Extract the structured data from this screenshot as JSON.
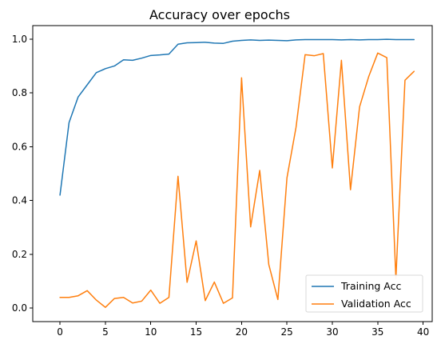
{
  "chart_data": {
    "type": "line",
    "title": "Accuracy over epochs",
    "xlabel": "",
    "ylabel": "",
    "xlim": [
      -3.0,
      41.0
    ],
    "ylim": [
      -0.05,
      1.05
    ],
    "x_ticks": [
      0,
      5,
      10,
      15,
      20,
      25,
      30,
      35,
      40
    ],
    "y_ticks": [
      0.0,
      0.2,
      0.4,
      0.6,
      0.8,
      1.0
    ],
    "x_tick_labels": [
      "0",
      "5",
      "10",
      "15",
      "20",
      "25",
      "30",
      "35",
      "40"
    ],
    "y_tick_labels": [
      "0.0",
      "0.2",
      "0.4",
      "0.6",
      "0.8",
      "1.0"
    ],
    "x": [
      0,
      1,
      2,
      3,
      4,
      5,
      6,
      7,
      8,
      9,
      10,
      11,
      12,
      13,
      14,
      15,
      16,
      17,
      18,
      19,
      20,
      21,
      22,
      23,
      24,
      25,
      26,
      27,
      28,
      29,
      30,
      31,
      32,
      33,
      34,
      35,
      36,
      37,
      38,
      39
    ],
    "series": [
      {
        "name": "Training Acc",
        "color": "#1f77b4",
        "values": [
          0.42,
          0.69,
          0.785,
          0.83,
          0.875,
          0.89,
          0.9,
          0.923,
          0.921,
          0.929,
          0.939,
          0.941,
          0.944,
          0.981,
          0.986,
          0.987,
          0.988,
          0.985,
          0.984,
          0.992,
          0.995,
          0.997,
          0.995,
          0.996,
          0.995,
          0.994,
          0.997,
          0.998,
          0.998,
          0.998,
          0.998,
          0.997,
          0.998,
          0.997,
          0.998,
          0.998,
          0.999,
          0.998,
          0.998,
          0.998
        ]
      },
      {
        "name": "Validation Acc",
        "color": "#ff7f0e",
        "values": [
          0.04,
          0.04,
          0.046,
          0.065,
          0.03,
          0.003,
          0.036,
          0.04,
          0.019,
          0.026,
          0.067,
          0.018,
          0.04,
          0.49,
          0.096,
          0.25,
          0.028,
          0.097,
          0.018,
          0.038,
          0.856,
          0.302,
          0.512,
          0.162,
          0.032,
          0.484,
          0.672,
          0.942,
          0.938,
          0.946,
          0.521,
          0.921,
          0.44,
          0.748,
          0.86,
          0.948,
          0.931,
          0.11,
          0.847,
          0.88
        ]
      }
    ],
    "grid": false,
    "legend_position": "lower-right"
  }
}
